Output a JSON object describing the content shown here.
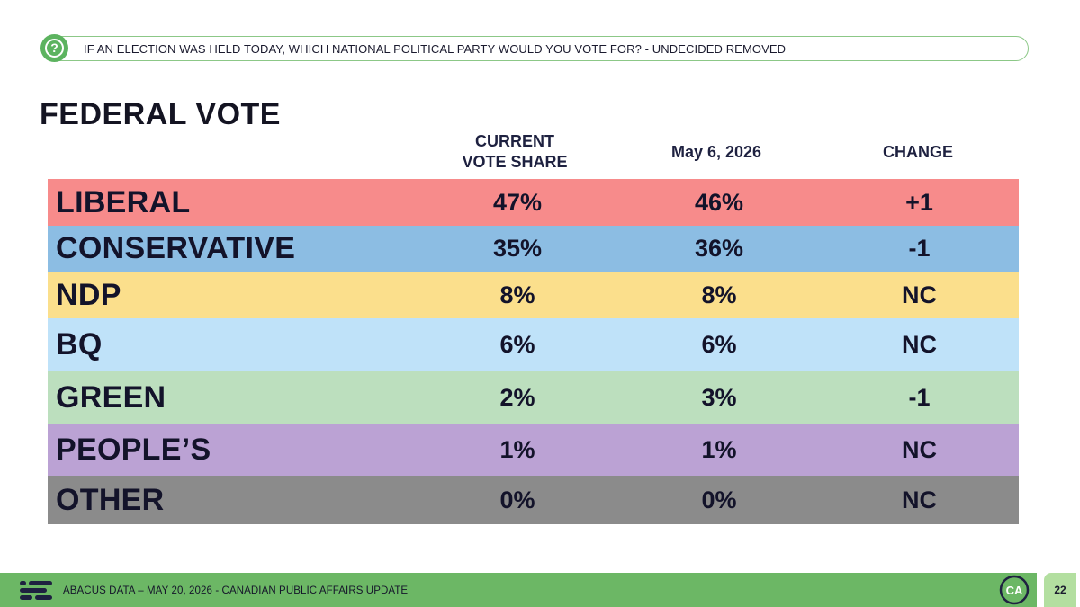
{
  "question": {
    "icon": "question-icon",
    "text": "IF AN ELECTION WAS HELD TODAY, WHICH NATIONAL POLITICAL PARTY WOULD YOU VOTE FOR? - UNDECIDED REMOVED"
  },
  "title": "FEDERAL VOTE",
  "headers": {
    "current": "CURRENT\nVOTE SHARE",
    "previous": "May 6, 2026",
    "change": "CHANGE"
  },
  "chart_data": {
    "type": "table",
    "title": "FEDERAL VOTE",
    "columns": [
      "CURRENT VOTE SHARE",
      "May 6, 2026",
      "CHANGE"
    ],
    "rows": [
      {
        "party": "LIBERAL",
        "current": "47%",
        "previous": "46%",
        "change": "+1",
        "color": "#f78b8b"
      },
      {
        "party": "CONSERVATIVE",
        "current": "35%",
        "previous": "36%",
        "change": "-1",
        "color": "#8cbde3"
      },
      {
        "party": "NDP",
        "current": "8%",
        "previous": "8%",
        "change": "NC",
        "color": "#fbdf8c"
      },
      {
        "party": "BQ",
        "current": "6%",
        "previous": "6%",
        "change": "NC",
        "color": "#bfe2f9"
      },
      {
        "party": "GREEN",
        "current": "2%",
        "previous": "3%",
        "change": "-1",
        "color": "#bcdfbe"
      },
      {
        "party": "PEOPLE’S",
        "current": "1%",
        "previous": "1%",
        "change": "NC",
        "color": "#bba2d4"
      },
      {
        "party": "OTHER",
        "current": "0%",
        "previous": "0%",
        "change": "NC",
        "color": "#8b8b8b"
      }
    ]
  },
  "footer": {
    "logo": "abacus-logo-icon",
    "text": "ABACUS DATA – MAY 20, 2026 - CANADIAN PUBLIC AFFAIRS UPDATE",
    "badge": "CA",
    "page": "22"
  },
  "colors": {
    "accent_green": "#6cb765",
    "question_border": "#8cc887",
    "page_badge": "#b3dfa0"
  }
}
